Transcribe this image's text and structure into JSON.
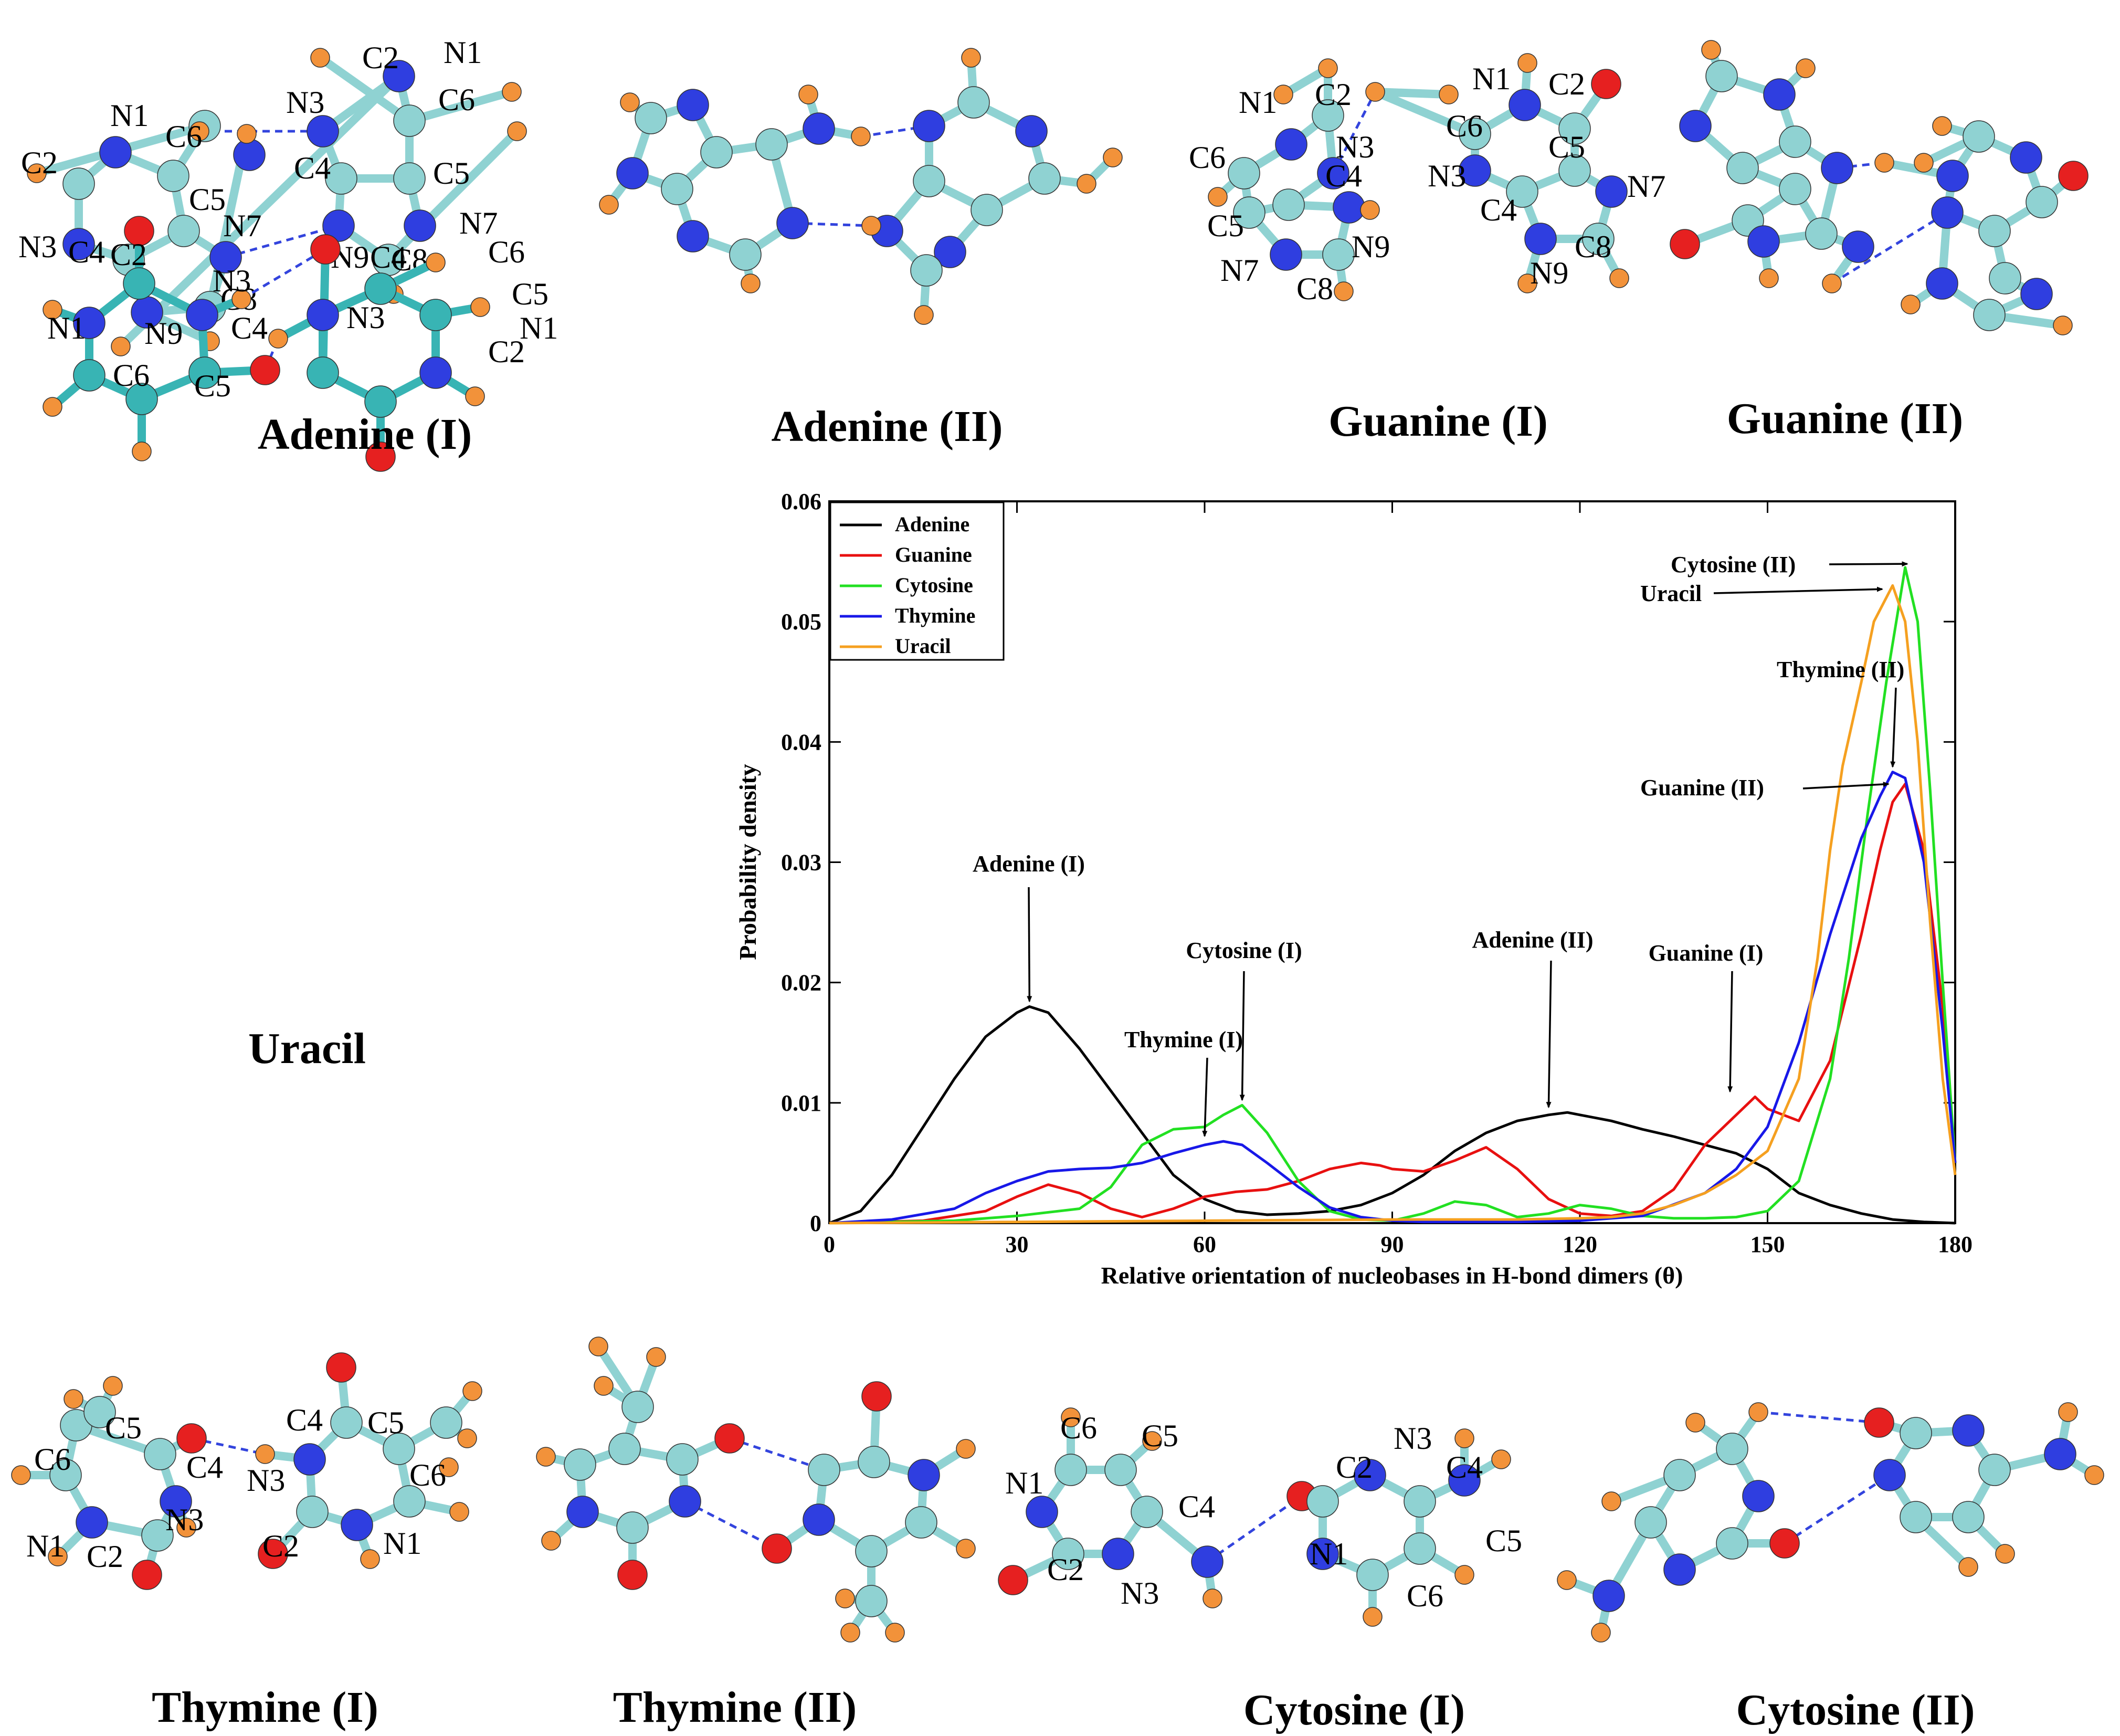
{
  "colors": {
    "carbon": "#8fd2d2",
    "carbon_uracil": "#38b4b4",
    "nitrogen": "#2f3ee0",
    "oxygen": "#e62020",
    "hydrogen": "#f2923a",
    "hbond": "#3344dd"
  },
  "panels": {
    "adenine_1": {
      "caption": "Adenine (I)",
      "labels": [
        "N1",
        "C6",
        "C2",
        "N3",
        "C4",
        "C5",
        "N7",
        "C8",
        "N9",
        "C2",
        "N1",
        "N3",
        "C6",
        "C4",
        "C5",
        "N9",
        "N7",
        "C8"
      ]
    },
    "adenine_2": {
      "caption": "Adenine (II)"
    },
    "guanine_1": {
      "caption": "Guanine (I)",
      "labels": [
        "N1",
        "C2",
        "C6",
        "N3",
        "C4",
        "C5",
        "N9",
        "N7",
        "C8",
        "N1",
        "C6",
        "C2",
        "C5",
        "N3",
        "C4",
        "N7",
        "C8",
        "N9"
      ]
    },
    "guanine_2": {
      "caption": "Guanine (II)"
    },
    "uracil": {
      "caption": "Uracil",
      "labels": [
        "C2",
        "N3",
        "N1",
        "C4",
        "C6",
        "C5",
        "C4",
        "C6",
        "C5",
        "N3",
        "N1",
        "C2"
      ]
    },
    "thymine_1": {
      "caption": "Thymine (I)",
      "labels": [
        "C5",
        "C6",
        "C4",
        "N1",
        "N3",
        "C2",
        "C4",
        "C5",
        "N3",
        "C6",
        "C2",
        "N1"
      ]
    },
    "thymine_2": {
      "caption": "Thymine (II)"
    },
    "cytosine_1": {
      "caption": "Cytosine (I)",
      "labels": [
        "C6",
        "C5",
        "N1",
        "C4",
        "C2",
        "N3",
        "N3",
        "C2",
        "C4",
        "N1",
        "C5",
        "C6"
      ]
    },
    "cytosine_2": {
      "caption": "Cytosine (II)"
    }
  },
  "chart_data": {
    "type": "line",
    "xlabel": "Relative orientation of nucleobases in H-bond dimers (θ)",
    "ylabel": "Probability density",
    "xlim": [
      0,
      180
    ],
    "ylim": [
      0,
      0.06
    ],
    "xticks": [
      "0",
      "30",
      "60",
      "90",
      "120",
      "150",
      "180"
    ],
    "yticks": [
      "0",
      "0.01",
      "0.02",
      "0.03",
      "0.04",
      "0.05",
      "0.06"
    ],
    "legend_position": "top-left",
    "series": [
      {
        "name": "Adenine",
        "color": "#000000",
        "x": [
          0,
          5,
          10,
          15,
          20,
          25,
          30,
          32,
          35,
          40,
          45,
          50,
          55,
          60,
          65,
          70,
          75,
          80,
          85,
          90,
          95,
          100,
          105,
          110,
          115,
          118,
          120,
          125,
          130,
          135,
          140,
          145,
          150,
          155,
          160,
          165,
          170,
          175,
          180
        ],
        "y": [
          0,
          0.001,
          0.004,
          0.008,
          0.012,
          0.0155,
          0.0175,
          0.018,
          0.0175,
          0.0145,
          0.011,
          0.0075,
          0.004,
          0.002,
          0.001,
          0.0007,
          0.0008,
          0.001,
          0.0015,
          0.0025,
          0.004,
          0.006,
          0.0075,
          0.0085,
          0.009,
          0.0092,
          0.009,
          0.0085,
          0.0078,
          0.0072,
          0.0065,
          0.0058,
          0.0045,
          0.0025,
          0.0015,
          0.0008,
          0.0003,
          0.0001,
          0
        ]
      },
      {
        "name": "Guanine",
        "color": "#e81010",
        "x": [
          0,
          15,
          25,
          30,
          35,
          40,
          45,
          50,
          55,
          60,
          65,
          70,
          75,
          80,
          85,
          88,
          90,
          95,
          100,
          105,
          110,
          115,
          120,
          125,
          130,
          135,
          140,
          145,
          148,
          150,
          155,
          160,
          165,
          168,
          170,
          172,
          175,
          178,
          180
        ],
        "y": [
          0,
          0.0002,
          0.001,
          0.0022,
          0.0032,
          0.0025,
          0.0012,
          0.0005,
          0.0012,
          0.0022,
          0.0026,
          0.0028,
          0.0035,
          0.0045,
          0.005,
          0.0048,
          0.0045,
          0.0043,
          0.0052,
          0.0063,
          0.0045,
          0.002,
          0.0008,
          0.0006,
          0.001,
          0.0028,
          0.0065,
          0.009,
          0.0105,
          0.0095,
          0.0085,
          0.0135,
          0.024,
          0.031,
          0.035,
          0.0365,
          0.031,
          0.018,
          0.005
        ]
      },
      {
        "name": "Cytosine",
        "color": "#22e022",
        "x": [
          0,
          20,
          30,
          40,
          45,
          50,
          55,
          60,
          63,
          66,
          70,
          75,
          80,
          85,
          90,
          95,
          100,
          105,
          110,
          115,
          120,
          125,
          130,
          135,
          140,
          145,
          150,
          155,
          160,
          163,
          166,
          169,
          172,
          174,
          176,
          178,
          180
        ],
        "y": [
          0,
          0.0002,
          0.0006,
          0.0012,
          0.003,
          0.0065,
          0.0078,
          0.008,
          0.009,
          0.0098,
          0.0075,
          0.0035,
          0.001,
          0.0003,
          0.0002,
          0.0008,
          0.0018,
          0.0015,
          0.0005,
          0.0008,
          0.0015,
          0.0012,
          0.0006,
          0.0004,
          0.0004,
          0.0005,
          0.001,
          0.0035,
          0.012,
          0.022,
          0.034,
          0.045,
          0.0545,
          0.05,
          0.036,
          0.02,
          0.005
        ]
      },
      {
        "name": "Thymine",
        "color": "#1818e8",
        "x": [
          0,
          10,
          20,
          25,
          30,
          35,
          40,
          45,
          50,
          55,
          60,
          63,
          66,
          70,
          75,
          80,
          85,
          90,
          95,
          100,
          110,
          120,
          130,
          140,
          145,
          150,
          155,
          160,
          165,
          168,
          170,
          172,
          175,
          178,
          180
        ],
        "y": [
          0,
          0.0003,
          0.0012,
          0.0025,
          0.0035,
          0.0043,
          0.0045,
          0.0046,
          0.005,
          0.0058,
          0.0065,
          0.0068,
          0.0065,
          0.005,
          0.003,
          0.0013,
          0.0005,
          0.0002,
          0.0001,
          0.0001,
          0.0001,
          0.0002,
          0.0006,
          0.0025,
          0.0045,
          0.008,
          0.015,
          0.024,
          0.032,
          0.0355,
          0.0375,
          0.037,
          0.03,
          0.016,
          0.005
        ]
      },
      {
        "name": "Uracil",
        "color": "#f5a020",
        "x": [
          0,
          30,
          60,
          90,
          100,
          110,
          120,
          125,
          130,
          135,
          140,
          145,
          150,
          155,
          158,
          160,
          162,
          165,
          167,
          169,
          170,
          172,
          174,
          176,
          178,
          180
        ],
        "y": [
          0,
          0.0001,
          0.0002,
          0.0003,
          0.0003,
          0.0003,
          0.0004,
          0.0005,
          0.0008,
          0.0015,
          0.0025,
          0.004,
          0.006,
          0.012,
          0.022,
          0.031,
          0.038,
          0.045,
          0.05,
          0.052,
          0.053,
          0.05,
          0.04,
          0.025,
          0.012,
          0.004
        ]
      }
    ],
    "annotations": [
      {
        "text": "Adenine (I)",
        "x": 32,
        "y": 0.018
      },
      {
        "text": "Cytosine (I)",
        "x": 66,
        "y": 0.0098
      },
      {
        "text": "Thymine (I)",
        "x": 60,
        "y": 0.0068
      },
      {
        "text": "Adenine (II)",
        "x": 115,
        "y": 0.0092
      },
      {
        "text": "Guanine (I)",
        "x": 144,
        "y": 0.0105
      },
      {
        "text": "Cytosine (II)",
        "x": 173,
        "y": 0.0548
      },
      {
        "text": "Uracil",
        "x": 169,
        "y": 0.0527
      },
      {
        "text": "Thymine (II)",
        "x": 170,
        "y": 0.0375
      },
      {
        "text": "Guanine (II)",
        "x": 170,
        "y": 0.0365
      }
    ]
  }
}
